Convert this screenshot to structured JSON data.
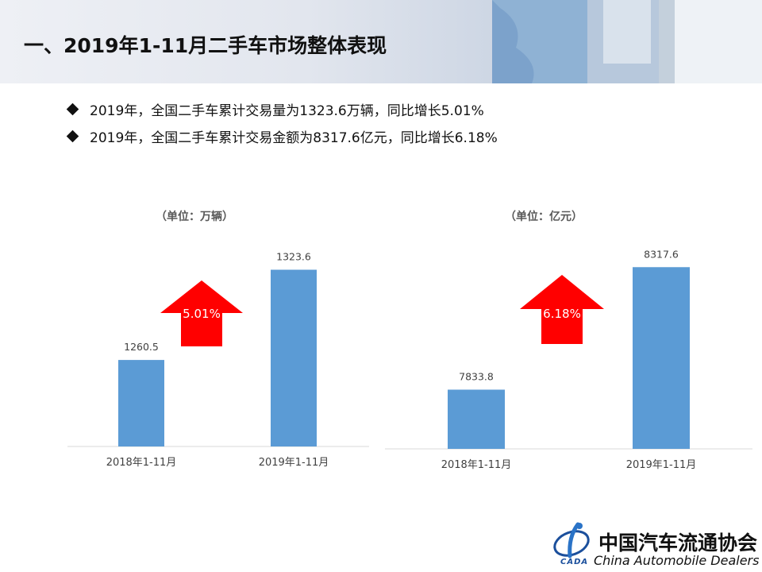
{
  "header": {
    "title": "一、2019年1-11月二手车市场整体表现"
  },
  "bullets": [
    "2019年，全国二手车累计交易量为1323.6万辆，同比增长5.01%",
    "2019年，全国二手车累计交易金额为8317.6亿元，同比增长6.18%"
  ],
  "logo": {
    "cn": "中国汽车流通协会",
    "en": "China Automobile Dealers",
    "mark_text": "CADA"
  },
  "colors": {
    "bar": "#5b9bd5",
    "arrow": "#ff0000"
  },
  "chart_data": [
    {
      "type": "bar",
      "unit_label": "（单位：万辆）",
      "categories": [
        "2018年1-11月",
        "2019年1-11月"
      ],
      "values": [
        1260.5,
        1323.6
      ],
      "value_labels": [
        "1260.5",
        "1323.6"
      ],
      "growth_label": "5.01%",
      "ylim": [
        1200,
        1340
      ]
    },
    {
      "type": "bar",
      "unit_label": "（单位：亿元）",
      "categories": [
        "2018年1-11月",
        "2019年1-11月"
      ],
      "values": [
        7833.8,
        8317.6
      ],
      "value_labels": [
        "7833.8",
        "8317.6"
      ],
      "growth_label": "6.18%",
      "ylim": [
        7600,
        8400
      ]
    }
  ]
}
